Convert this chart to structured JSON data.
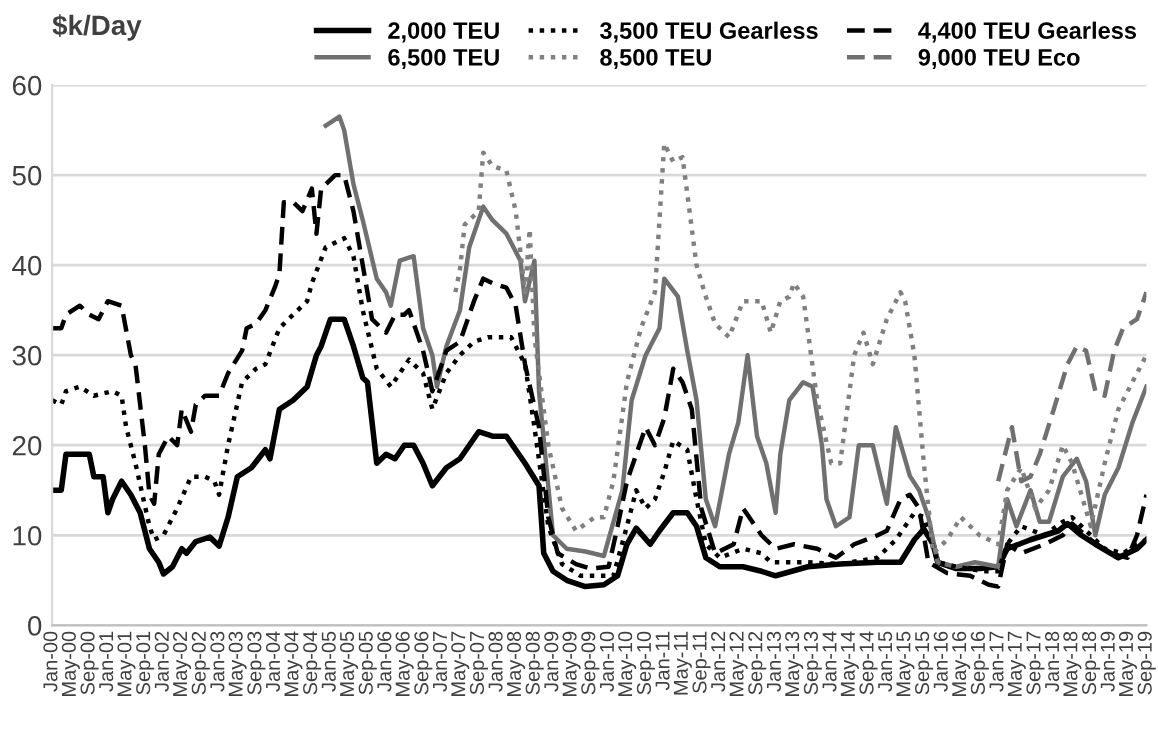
{
  "chart_data": {
    "type": "line",
    "ylabel": "$k/Day",
    "ylim": [
      0,
      60
    ],
    "yticks": [
      0,
      10,
      20,
      30,
      40,
      50,
      60
    ],
    "grid": "y",
    "legend": "top right",
    "marker": "none",
    "xlim": [
      "2000-01",
      "2019-09"
    ],
    "xticks": [
      {
        "value": "2000-01",
        "label": "Jan-00"
      },
      {
        "value": "2000-05",
        "label": "May-00"
      },
      {
        "value": "2000-09",
        "label": "Sep-00"
      },
      {
        "value": "2001-01",
        "label": "Jan-01"
      },
      {
        "value": "2001-05",
        "label": "May-01"
      },
      {
        "value": "2001-09",
        "label": "Sep-01"
      },
      {
        "value": "2002-01",
        "label": "Jan-02"
      },
      {
        "value": "2002-05",
        "label": "May-02"
      },
      {
        "value": "2002-09",
        "label": "Sep-02"
      },
      {
        "value": "2003-01",
        "label": "Jan-03"
      },
      {
        "value": "2003-05",
        "label": "May-03"
      },
      {
        "value": "2003-09",
        "label": "Sep-03"
      },
      {
        "value": "2004-01",
        "label": "Jan-04"
      },
      {
        "value": "2004-05",
        "label": "May-04"
      },
      {
        "value": "2004-09",
        "label": "Sep-04"
      },
      {
        "value": "2005-01",
        "label": "Jan-05"
      },
      {
        "value": "2005-05",
        "label": "May-05"
      },
      {
        "value": "2005-09",
        "label": "Sep-05"
      },
      {
        "value": "2006-01",
        "label": "Jan-06"
      },
      {
        "value": "2006-05",
        "label": "May-06"
      },
      {
        "value": "2006-09",
        "label": "Sep-06"
      },
      {
        "value": "2007-01",
        "label": "Jan-07"
      },
      {
        "value": "2007-05",
        "label": "May-07"
      },
      {
        "value": "2007-09",
        "label": "Sep-07"
      },
      {
        "value": "2008-01",
        "label": "Jan-08"
      },
      {
        "value": "2008-05",
        "label": "May-08"
      },
      {
        "value": "2008-09",
        "label": "Sep-08"
      },
      {
        "value": "2009-01",
        "label": "Jan-09"
      },
      {
        "value": "2009-05",
        "label": "May-09"
      },
      {
        "value": "2009-09",
        "label": "Sep-09"
      },
      {
        "value": "2010-01",
        "label": "Jan-10"
      },
      {
        "value": "2010-05",
        "label": "May-10"
      },
      {
        "value": "2010-09",
        "label": "Sep-10"
      },
      {
        "value": "2011-01",
        "label": "Jan-11"
      },
      {
        "value": "2011-05",
        "label": "May-11"
      },
      {
        "value": "2011-09",
        "label": "Sep-11"
      },
      {
        "value": "2012-01",
        "label": "Jan-12"
      },
      {
        "value": "2012-05",
        "label": "May-12"
      },
      {
        "value": "2012-09",
        "label": "Sep-12"
      },
      {
        "value": "2013-01",
        "label": "Jan-13"
      },
      {
        "value": "2013-05",
        "label": "May-13"
      },
      {
        "value": "2013-09",
        "label": "Sep-13"
      },
      {
        "value": "2014-01",
        "label": "Jan-14"
      },
      {
        "value": "2014-05",
        "label": "May-14"
      },
      {
        "value": "2014-09",
        "label": "Sep-14"
      },
      {
        "value": "2015-01",
        "label": "Jan-15"
      },
      {
        "value": "2015-05",
        "label": "May-15"
      },
      {
        "value": "2015-09",
        "label": "Sep-15"
      },
      {
        "value": "2016-01",
        "label": "Jan-16"
      },
      {
        "value": "2016-05",
        "label": "May-16"
      },
      {
        "value": "2016-09",
        "label": "Sep-16"
      },
      {
        "value": "2017-01",
        "label": "Jan-17"
      },
      {
        "value": "2017-05",
        "label": "May-17"
      },
      {
        "value": "2017-09",
        "label": "Sep-17"
      },
      {
        "value": "2018-01",
        "label": "Jan-18"
      },
      {
        "value": "2018-05",
        "label": "May-18"
      },
      {
        "value": "2018-09",
        "label": "Sep-18"
      },
      {
        "value": "2019-01",
        "label": "Jan-19"
      },
      {
        "value": "2019-05",
        "label": "May-19"
      },
      {
        "value": "2019-09",
        "label": "Sep-19"
      }
    ],
    "series": [
      {
        "name": "2,000 TEU",
        "color": "#000000",
        "line_style": "solid",
        "x": [
          "2000-01",
          "2000-03",
          "2000-04",
          "2000-09",
          "2000-10",
          "2000-12",
          "2001-01",
          "2001-02",
          "2001-04",
          "2001-06",
          "2001-08",
          "2001-10",
          "2001-12",
          "2002-01",
          "2002-03",
          "2002-05",
          "2002-06",
          "2002-08",
          "2002-11",
          "2003-01",
          "2003-03",
          "2003-05",
          "2003-08",
          "2003-11",
          "2003-12",
          "2004-02",
          "2004-05",
          "2004-08",
          "2004-10",
          "2004-11",
          "2005-01",
          "2005-04",
          "2005-06",
          "2005-08",
          "2005-09",
          "2005-11",
          "2006-01",
          "2006-03",
          "2006-05",
          "2006-07",
          "2006-09",
          "2006-11",
          "2007-02",
          "2007-05",
          "2007-09",
          "2007-12",
          "2008-03",
          "2008-07",
          "2008-10",
          "2008-11",
          "2009-01",
          "2009-04",
          "2009-08",
          "2009-12",
          "2010-03",
          "2010-05",
          "2010-07",
          "2010-10",
          "2010-12",
          "2011-03",
          "2011-06",
          "2011-08",
          "2011-10",
          "2012-01",
          "2012-06",
          "2012-10",
          "2013-01",
          "2013-08",
          "2014-03",
          "2014-11",
          "2015-04",
          "2015-07",
          "2015-09",
          "2015-11",
          "2015-12",
          "2016-04",
          "2016-09",
          "2017-01",
          "2017-03",
          "2017-08",
          "2018-02",
          "2018-04",
          "2018-07",
          "2018-10",
          "2019-03",
          "2019-07",
          "2019-09"
        ],
        "values": [
          15,
          15,
          19,
          19,
          16.5,
          16.5,
          12.5,
          14,
          16,
          14.5,
          12.5,
          8.5,
          7,
          5.7,
          6.5,
          8.5,
          8,
          9.3,
          9.8,
          8.8,
          12,
          16.5,
          17.5,
          19.5,
          18.5,
          24,
          25,
          26.5,
          30,
          31,
          34,
          34,
          31,
          27.5,
          27,
          18,
          19,
          18.5,
          20,
          20,
          18,
          15.5,
          17.5,
          18.5,
          21.5,
          21,
          21,
          18,
          15.5,
          8,
          6,
          5,
          4.3,
          4.5,
          5.5,
          9,
          10.8,
          9,
          10.5,
          12.5,
          12.5,
          11,
          7.5,
          6.5,
          6.5,
          6,
          5.5,
          6.5,
          6.8,
          7,
          7,
          9.5,
          10.7,
          9,
          7,
          6.3,
          6.3,
          6.5,
          8.5,
          9.5,
          10.5,
          11.3,
          10,
          9,
          7.5,
          8.5,
          9.5
        ]
      },
      {
        "name": "6,500 TEU",
        "color": "#707070",
        "line_style": "solid",
        "x": [
          "2004-12",
          "2005-03",
          "2005-04",
          "2005-06",
          "2005-08",
          "2005-11",
          "2006-01",
          "2006-02",
          "2006-04",
          "2006-07",
          "2006-09",
          "2006-11",
          "2006-12",
          "2007-02",
          "2007-05",
          "2007-07",
          "2007-10",
          "2007-12",
          "2008-03",
          "2008-06",
          "2008-07",
          "2008-09",
          "2008-10",
          "2009-01",
          "2009-04",
          "2009-08",
          "2009-12",
          "2010-04",
          "2010-06",
          "2010-09",
          "2010-12",
          "2011-01",
          "2011-04",
          "2011-06",
          "2011-08",
          "2011-10",
          "2011-12",
          "2012-03",
          "2012-05",
          "2012-07",
          "2012-09",
          "2012-11",
          "2013-01",
          "2013-02",
          "2013-04",
          "2013-07",
          "2013-09",
          "2013-11",
          "2013-12",
          "2014-02",
          "2014-05",
          "2014-07",
          "2014-10",
          "2015-01",
          "2015-03",
          "2015-06",
          "2015-08",
          "2015-10",
          "2015-12",
          "2016-04",
          "2016-08",
          "2017-01",
          "2017-03",
          "2017-05",
          "2017-08",
          "2017-10",
          "2017-12",
          "2018-03",
          "2018-06",
          "2018-08",
          "2018-10",
          "2018-12",
          "2019-03",
          "2019-06",
          "2019-09"
        ],
        "values": [
          55.5,
          56.5,
          55,
          49,
          45,
          38.5,
          37,
          35.5,
          40.5,
          41,
          33,
          30,
          26.5,
          31,
          35,
          42,
          46.5,
          45,
          43.5,
          40.5,
          36,
          40.5,
          26,
          10,
          8.5,
          8.2,
          7.7,
          15,
          25,
          30,
          33,
          38.5,
          36.5,
          30.5,
          25,
          14,
          11,
          19,
          22.5,
          30,
          21,
          18,
          12.5,
          19,
          25,
          27,
          26.5,
          20,
          14,
          11,
          12,
          20,
          20,
          13.5,
          22,
          16.6,
          15,
          12,
          7,
          6.5,
          7,
          6.5,
          14,
          11,
          15,
          11.5,
          11.5,
          16.5,
          18.5,
          16,
          10,
          14.5,
          17.5,
          22.5,
          26.5
        ]
      },
      {
        "name": "3,500 TEU Gearless",
        "color": "#000000",
        "line_style": "dotted",
        "x": [
          "2000-01",
          "2000-03",
          "2000-04",
          "2000-07",
          "2000-10",
          "2001-02",
          "2001-04",
          "2001-05",
          "2001-07",
          "2001-10",
          "2001-11",
          "2002-01",
          "2002-04",
          "2002-07",
          "2002-10",
          "2002-12",
          "2003-01",
          "2003-03",
          "2003-06",
          "2003-09",
          "2003-11",
          "2004-02",
          "2004-05",
          "2004-08",
          "2004-09",
          "2004-12",
          "2005-04",
          "2005-06",
          "2005-08",
          "2005-11",
          "2006-02",
          "2006-04",
          "2006-06",
          "2006-09",
          "2006-11",
          "2007-02",
          "2007-05",
          "2007-08",
          "2007-11",
          "2008-04",
          "2008-07",
          "2008-09",
          "2008-12",
          "2009-03",
          "2009-07",
          "2009-11",
          "2010-02",
          "2010-05",
          "2010-07",
          "2010-09",
          "2010-11",
          "2011-01",
          "2011-03",
          "2011-06",
          "2011-08",
          "2011-10",
          "2012-01",
          "2012-06",
          "2012-10",
          "2012-12",
          "2013-08",
          "2014-03",
          "2014-11",
          "2015-03",
          "2015-07",
          "2015-09",
          "2015-12",
          "2016-04",
          "2016-10",
          "2017-01",
          "2017-03",
          "2017-06",
          "2017-11",
          "2018-03",
          "2018-05",
          "2018-09",
          "2018-12",
          "2019-04",
          "2019-07",
          "2019-09"
        ],
        "values": [
          25,
          24.5,
          26,
          26.5,
          25.5,
          26,
          25.5,
          22,
          18,
          11,
          9.5,
          10,
          13,
          16.5,
          16.5,
          16,
          14.5,
          20,
          27,
          28.5,
          29,
          33,
          34.5,
          36,
          38,
          42,
          43,
          41,
          35,
          28.5,
          26.5,
          28,
          29.5,
          28,
          24,
          28,
          30,
          31.5,
          32,
          32,
          29,
          22,
          11,
          6.8,
          5.5,
          5.5,
          5.5,
          11,
          15,
          13,
          14,
          17,
          20.5,
          19.5,
          14,
          9,
          7.5,
          8.5,
          8,
          7,
          7,
          6.8,
          7.5,
          9.5,
          12.5,
          12,
          7,
          6.5,
          6,
          6,
          9,
          11,
          10,
          11.5,
          12,
          10,
          8.5,
          8,
          9,
          9.5
        ]
      },
      {
        "name": "8,500 TEU",
        "color": "#808080",
        "line_style": "dotted",
        "x": [
          "2007-04",
          "2007-05",
          "2007-06",
          "2007-09",
          "2007-10",
          "2007-12",
          "2008-03",
          "2008-05",
          "2008-07",
          "2008-08",
          "2008-09",
          "2008-12",
          "2009-03",
          "2009-06",
          "2009-10",
          "2009-12",
          "2010-02",
          "2010-05",
          "2010-08",
          "2010-11",
          "2011-01",
          "2011-03",
          "2011-05",
          "2011-08",
          "2011-10",
          "2011-12",
          "2012-03",
          "2012-06",
          "2012-10",
          "2012-12",
          "2013-02",
          "2013-04",
          "2013-05",
          "2013-07",
          "2013-10",
          "2014-01",
          "2014-03",
          "2014-06",
          "2014-08",
          "2014-10",
          "2015-01",
          "2015-04",
          "2015-05",
          "2015-07",
          "2015-09",
          "2015-11",
          "2016-02",
          "2016-05",
          "2016-09",
          "2017-01",
          "2017-03",
          "2017-06",
          "2017-09",
          "2017-12",
          "2018-03",
          "2018-05",
          "2018-09",
          "2018-12",
          "2019-03",
          "2019-07",
          "2019-09"
        ],
        "values": [
          37,
          39.5,
          44.5,
          46,
          52.5,
          51,
          50.5,
          46,
          37,
          44,
          32,
          20,
          13,
          10.5,
          12,
          12,
          16,
          27,
          33,
          37,
          53.5,
          51.5,
          52,
          40,
          36.5,
          33.5,
          32,
          36,
          36,
          32.5,
          36,
          36.5,
          38,
          36.5,
          25,
          18,
          18,
          30,
          32.5,
          29,
          34,
          37,
          36,
          30,
          18,
          8,
          9.5,
          12,
          10,
          9,
          15,
          17.5,
          13,
          15,
          20,
          18,
          11,
          18,
          24,
          28,
          30
        ]
      },
      {
        "name": "4,400 TEU Gearless",
        "color": "#000000",
        "line_style": "dashed",
        "x": [
          "2000-01",
          "2000-03",
          "2000-04",
          "2000-07",
          "2000-09",
          "2000-11",
          "2001-01",
          "2001-04",
          "2001-06",
          "2001-07",
          "2001-09",
          "2001-10",
          "2001-11",
          "2001-12",
          "2002-02",
          "2002-04",
          "2002-05",
          "2002-07",
          "2002-08",
          "2002-10",
          "2003-01",
          "2003-03",
          "2003-06",
          "2003-07",
          "2003-09",
          "2003-11",
          "2004-01",
          "2004-02",
          "2004-03",
          "2004-05",
          "2004-07",
          "2004-09",
          "2004-10",
          "2004-11",
          "2005-02",
          "2005-04",
          "2005-06",
          "2005-08",
          "2005-10",
          "2006-01",
          "2006-03",
          "2006-05",
          "2006-06",
          "2006-09",
          "2006-11",
          "2007-02",
          "2007-05",
          "2007-08",
          "2007-10",
          "2007-12",
          "2008-03",
          "2008-05",
          "2008-07",
          "2008-10",
          "2008-12",
          "2009-02",
          "2009-06",
          "2009-09",
          "2010-01",
          "2010-03",
          "2010-05",
          "2010-09",
          "2010-11",
          "2011-01",
          "2011-03",
          "2011-05",
          "2011-07",
          "2011-09",
          "2011-12",
          "2012-04",
          "2012-06",
          "2012-08",
          "2012-10",
          "2013-01",
          "2013-05",
          "2013-10",
          "2014-02",
          "2014-06",
          "2014-11",
          "2015-01",
          "2015-04",
          "2015-06",
          "2015-08",
          "2015-10",
          "2016-02",
          "2016-07",
          "2016-11",
          "2017-01",
          "2017-03",
          "2017-06",
          "2017-11",
          "2018-03",
          "2018-05",
          "2018-09",
          "2019-01",
          "2019-05",
          "2019-07",
          "2019-09"
        ],
        "values": [
          33,
          33,
          34.5,
          35.5,
          34.5,
          34,
          36,
          35.5,
          30,
          29,
          20,
          14.5,
          13.5,
          19,
          21,
          20,
          24,
          21.5,
          24.5,
          25.5,
          25.5,
          28,
          30.5,
          33,
          33.5,
          35,
          37.5,
          39,
          47,
          47,
          46,
          48.5,
          43.5,
          48.5,
          50,
          50,
          46,
          40,
          34,
          32.5,
          34.5,
          34.5,
          35,
          30.5,
          26,
          30.5,
          31.5,
          36,
          38.5,
          38,
          37.5,
          35.5,
          29,
          22,
          12,
          8,
          6.8,
          6.3,
          6.5,
          11,
          16,
          22,
          20,
          23,
          28.5,
          27,
          24,
          13,
          8,
          9,
          13,
          11.5,
          10,
          8.5,
          9,
          8.5,
          7.5,
          9,
          10,
          10.5,
          14,
          14.5,
          13,
          7,
          5.8,
          5.5,
          4.5,
          4.3,
          9,
          8,
          9,
          10,
          11.3,
          9.5,
          8,
          7.5,
          10,
          14.5
        ]
      },
      {
        "name": "9,000 TEU Eco",
        "color": "#707070",
        "line_style": "dashed",
        "x": [
          "2017-01",
          "2017-04",
          "2017-06",
          "2017-08",
          "2017-10",
          "2018-01",
          "2018-04",
          "2018-06",
          "2018-08",
          "2018-10",
          "2018-12",
          "2019-02",
          "2019-04",
          "2019-07",
          "2019-09"
        ],
        "values": [
          16,
          22,
          16,
          16.5,
          19,
          24,
          29,
          31,
          30.5,
          26,
          25.5,
          30.5,
          33,
          34,
          37
        ]
      }
    ]
  }
}
